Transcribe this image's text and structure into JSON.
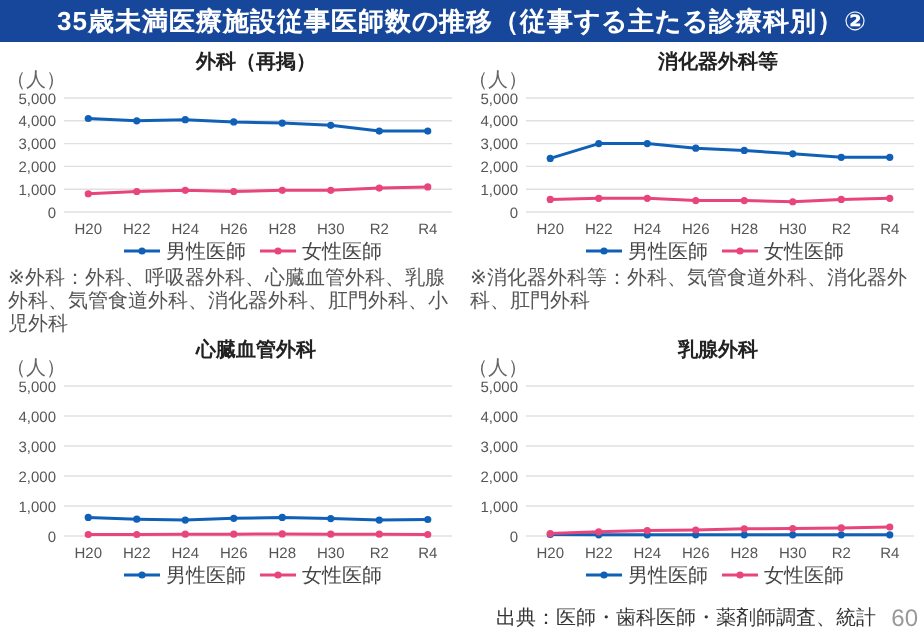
{
  "chart_data": [
    {
      "type": "other",
      "title": "35歳未満医療施設従事医師数の推移（従事する主たる診療科別）②",
      "annotations": [
        "出典：医師・歯科医師・薬剤師調査、統計",
        "60"
      ]
    },
    {
      "type": "line",
      "title": "外科（再掲）",
      "ylabel": "（人）",
      "categories": [
        "H20",
        "H22",
        "H24",
        "H26",
        "H28",
        "H30",
        "R2",
        "R4"
      ],
      "series": [
        {
          "name": "男性医師",
          "color": "#1060b8",
          "values": [
            4100,
            4000,
            4050,
            3950,
            3900,
            3800,
            3550,
            3550
          ]
        },
        {
          "name": "女性医師",
          "color": "#e8457a",
          "values": [
            800,
            900,
            950,
            900,
            950,
            950,
            1050,
            1100
          ]
        }
      ],
      "ylim": [
        0,
        5000
      ],
      "yticks": [
        {
          "value": 0,
          "label": "0"
        },
        {
          "value": 1000,
          "label": "1,000"
        },
        {
          "value": 2000,
          "label": "2,000"
        },
        {
          "value": 3000,
          "label": "3,000"
        },
        {
          "value": 4000,
          "label": "4,000"
        },
        {
          "value": 5000,
          "label": "5,000"
        }
      ],
      "grid": "y",
      "legend": "bottom",
      "marker": "circle",
      "annotations": [
        "※外科：外科、呼吸器外科、心臓血管外科、乳腺外科、気管食道外科、消化器外科、肛門外科、小児外科"
      ]
    },
    {
      "type": "line",
      "title": "消化器外科等",
      "ylabel": "（人）",
      "categories": [
        "H20",
        "H22",
        "H24",
        "H26",
        "H28",
        "H30",
        "R2",
        "R4"
      ],
      "series": [
        {
          "name": "男性医師",
          "color": "#1060b8",
          "values": [
            2350,
            3000,
            3000,
            2800,
            2700,
            2550,
            2400,
            2400
          ]
        },
        {
          "name": "女性医師",
          "color": "#e8457a",
          "values": [
            550,
            600,
            600,
            500,
            500,
            450,
            550,
            600
          ]
        }
      ],
      "ylim": [
        0,
        5000
      ],
      "yticks": [
        {
          "value": 0,
          "label": "0"
        },
        {
          "value": 1000,
          "label": "1,000"
        },
        {
          "value": 2000,
          "label": "2,000"
        },
        {
          "value": 3000,
          "label": "3,000"
        },
        {
          "value": 4000,
          "label": "4,000"
        },
        {
          "value": 5000,
          "label": "5,000"
        }
      ],
      "grid": "y",
      "legend": "bottom",
      "marker": "circle",
      "annotations": [
        "※消化器外科等：外科、気管食道外科、消化器外科、肛門外科"
      ]
    },
    {
      "type": "line",
      "title": "心臓血管外科",
      "ylabel": "（人）",
      "categories": [
        "H20",
        "H22",
        "H24",
        "H26",
        "H28",
        "H30",
        "R2",
        "R4"
      ],
      "series": [
        {
          "name": "男性医師",
          "color": "#1060b8",
          "values": [
            620,
            560,
            530,
            590,
            620,
            580,
            530,
            550
          ]
        },
        {
          "name": "女性医師",
          "color": "#e8457a",
          "values": [
            50,
            50,
            60,
            60,
            70,
            60,
            60,
            50
          ]
        }
      ],
      "ylim": [
        0,
        5000
      ],
      "yticks": [
        {
          "value": 0,
          "label": "0"
        },
        {
          "value": 1000,
          "label": "1,000"
        },
        {
          "value": 2000,
          "label": "2,000"
        },
        {
          "value": 3000,
          "label": "3,000"
        },
        {
          "value": 4000,
          "label": "4,000"
        },
        {
          "value": 5000,
          "label": "5,000"
        }
      ],
      "grid": "y",
      "legend": "bottom",
      "marker": "circle"
    },
    {
      "type": "line",
      "title": "乳腺外科",
      "ylabel": "（人）",
      "categories": [
        "H20",
        "H22",
        "H24",
        "H26",
        "H28",
        "H30",
        "R2",
        "R4"
      ],
      "series": [
        {
          "name": "男性医師",
          "color": "#1060b8",
          "values": [
            50,
            40,
            40,
            40,
            40,
            40,
            40,
            40
          ]
        },
        {
          "name": "女性医師",
          "color": "#e8457a",
          "values": [
            80,
            140,
            180,
            200,
            240,
            250,
            270,
            300
          ]
        }
      ],
      "ylim": [
        0,
        5000
      ],
      "yticks": [
        {
          "value": 0,
          "label": "0"
        },
        {
          "value": 1000,
          "label": "1,000"
        },
        {
          "value": 2000,
          "label": "2,000"
        },
        {
          "value": 3000,
          "label": "3,000"
        },
        {
          "value": 4000,
          "label": "4,000"
        },
        {
          "value": 5000,
          "label": "5,000"
        }
      ],
      "grid": "y",
      "legend": "bottom",
      "marker": "circle"
    }
  ]
}
